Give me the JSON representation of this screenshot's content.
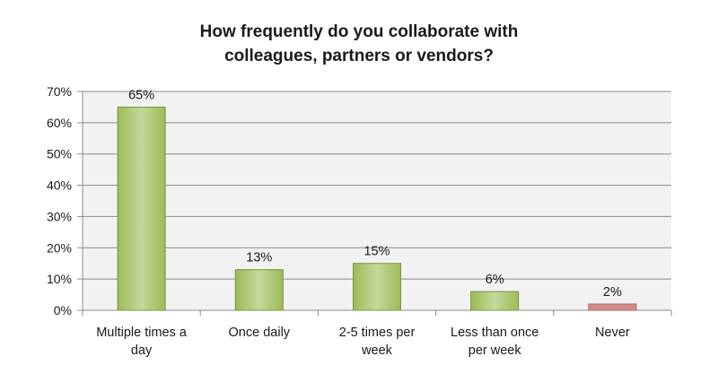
{
  "chart_data": {
    "type": "bar",
    "title_lines": [
      "How frequently do you collaborate with",
      "colleagues, partners or vendors?"
    ],
    "categories": [
      "Multiple times a day",
      "Once daily",
      "2-5 times per week",
      "Less than once per week",
      "Never"
    ],
    "category_label_lines": [
      [
        "Multiple times a",
        "day"
      ],
      [
        "Once daily"
      ],
      [
        "2-5 times per",
        "week"
      ],
      [
        "Less than once",
        "per week"
      ],
      [
        "Never"
      ]
    ],
    "values": [
      65,
      13,
      15,
      6,
      2
    ],
    "data_labels": [
      "65%",
      "13%",
      "15%",
      "6%",
      "2%"
    ],
    "y_ticks": [
      "0%",
      "10%",
      "20%",
      "30%",
      "40%",
      "50%",
      "60%",
      "70%"
    ],
    "ylim": [
      0,
      70
    ],
    "grid": true,
    "legend": "none",
    "colors": {
      "bar_fill": "#9dbb59",
      "bar_fill_light": "#c4d89a",
      "bar_stroke": "#7a9540",
      "highlight_fill": "#d48c8a",
      "highlight_stroke": "#b06866",
      "plot_background": "#f2f2f2",
      "grid": "#8c8c8c"
    },
    "highlight_categories": [
      "Never"
    ]
  }
}
